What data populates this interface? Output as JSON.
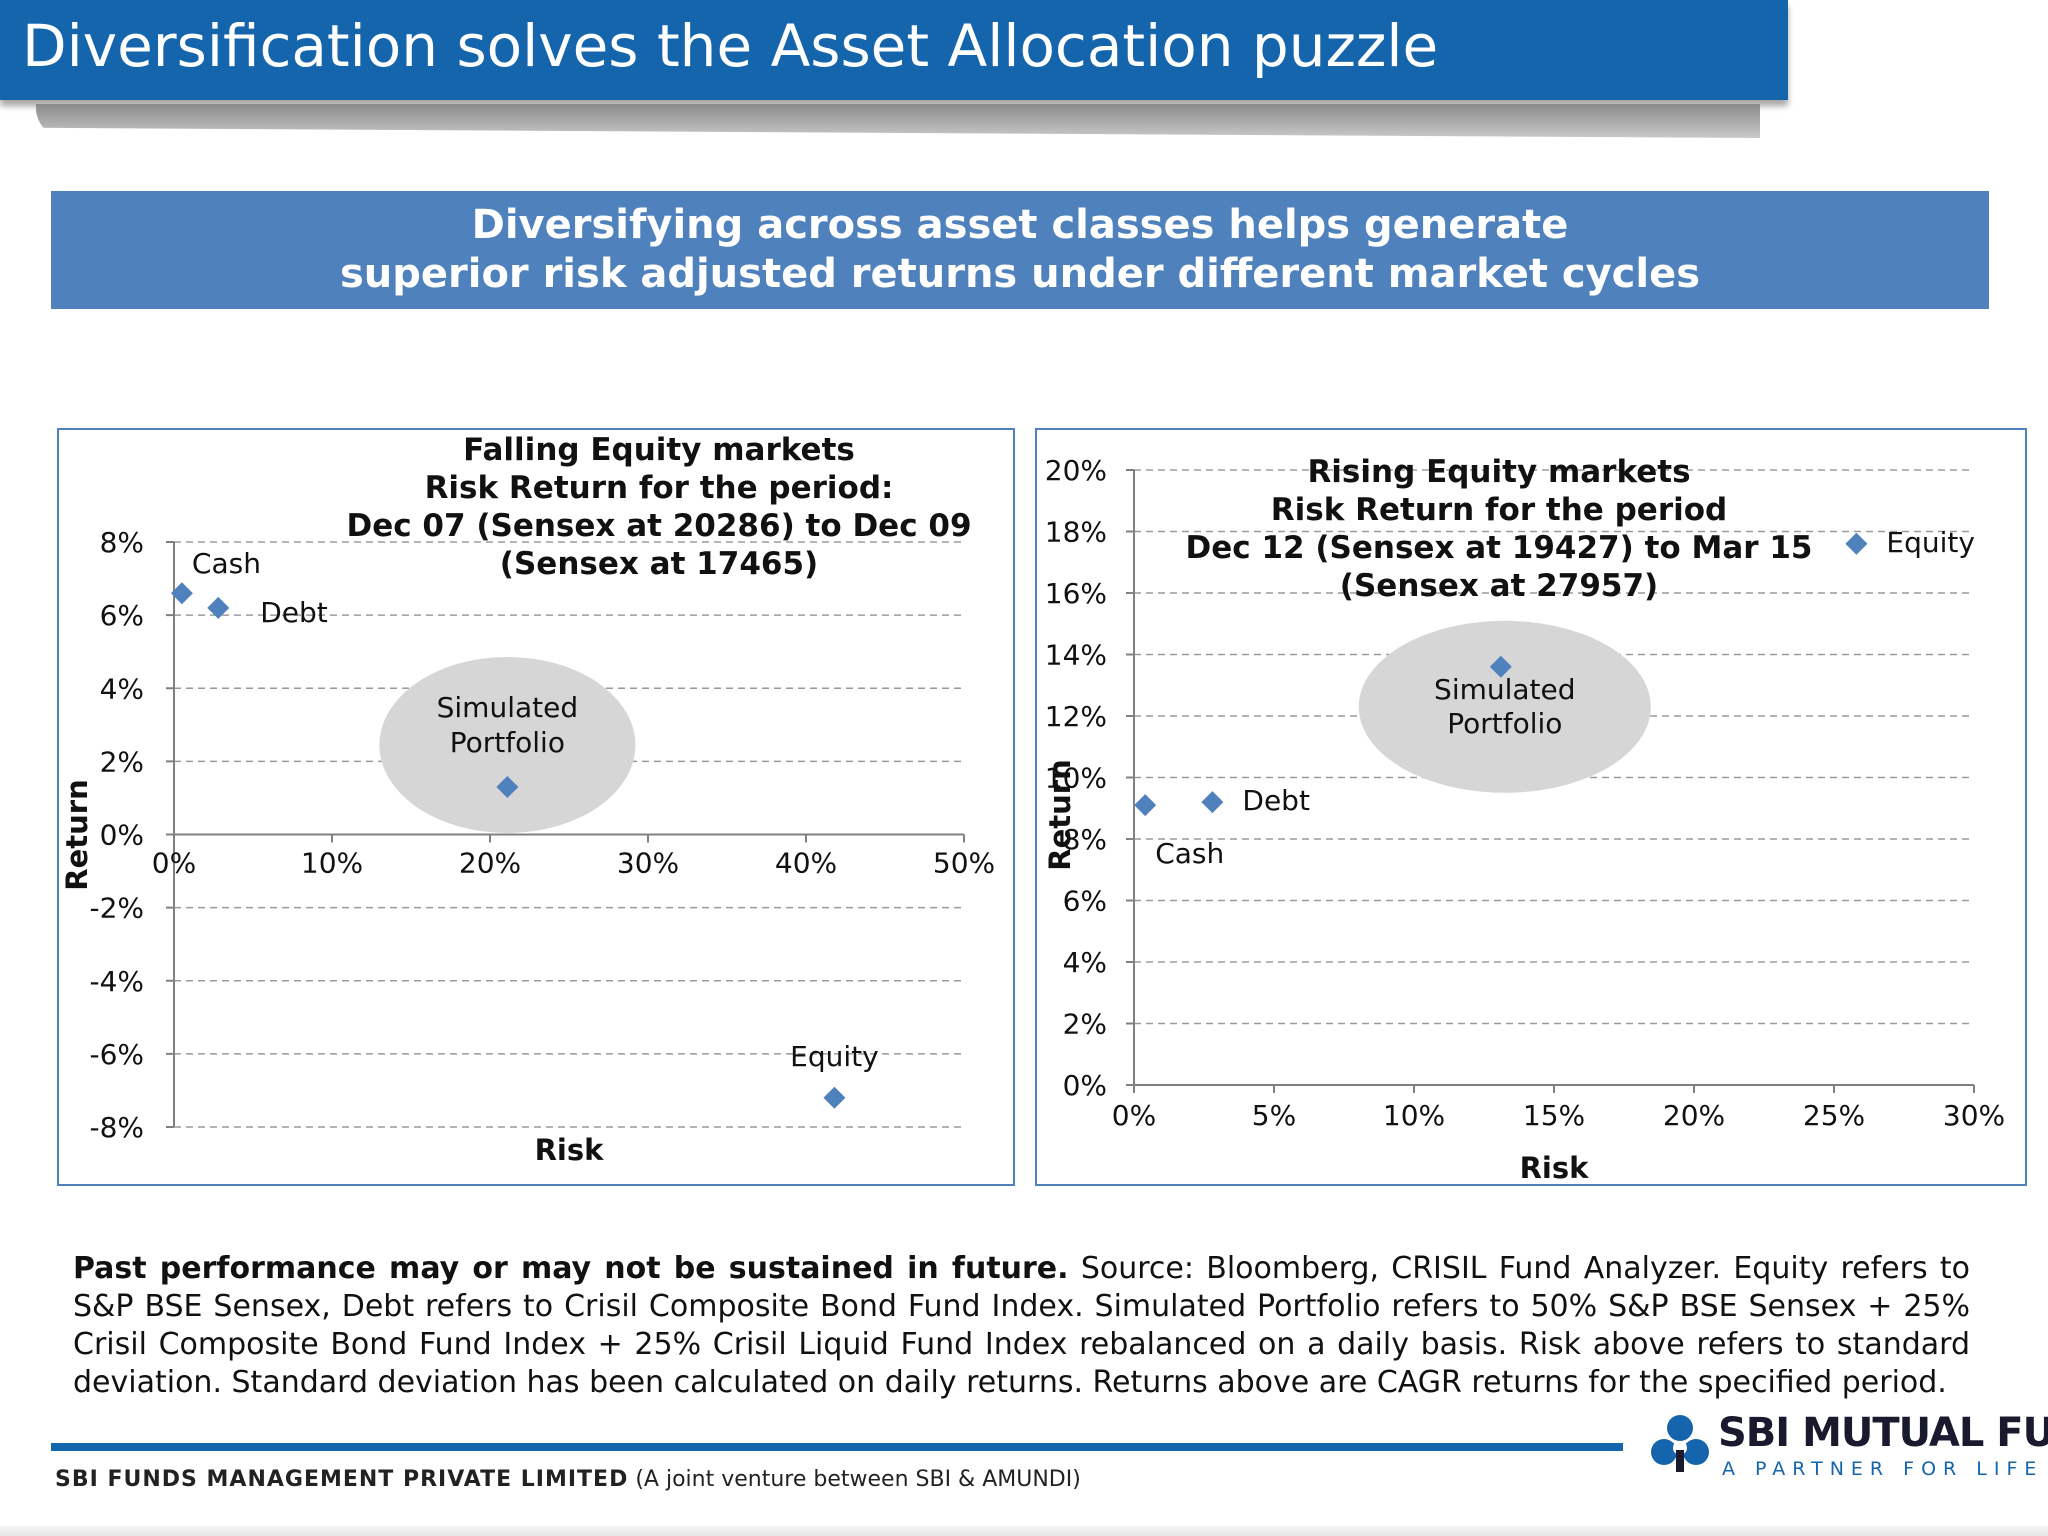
{
  "header": {
    "title": "Diversification solves the Asset Allocation puzzle"
  },
  "banner": {
    "line1": "Diversifying across asset classes helps generate",
    "line2": "superior risk adjusted returns under different market cycles"
  },
  "chart_data": [
    {
      "type": "scatter",
      "title_lines": [
        "Falling Equity markets",
        "Risk Return for the period:",
        "Dec 07 (Sensex at 20286) to Dec 09",
        "(Sensex at 17465)"
      ],
      "xlabel": "Risk",
      "ylabel": "Return",
      "xlim": [
        0,
        50
      ],
      "ylim": [
        -8,
        8
      ],
      "x_ticks": [
        0,
        10,
        20,
        30,
        40,
        50
      ],
      "y_ticks": [
        -8,
        -6,
        -4,
        -2,
        0,
        2,
        4,
        6,
        8
      ],
      "tick_format": "percent",
      "grid": true,
      "marker_color": "#4f81bd",
      "points": [
        {
          "label": "Cash",
          "x": 0.5,
          "y": 6.6
        },
        {
          "label": "Debt",
          "x": 2.8,
          "y": 6.2
        },
        {
          "label": "Simulated Portfolio",
          "x": 21.1,
          "y": 1.3
        },
        {
          "label": "Equity",
          "x": 41.8,
          "y": -7.2
        }
      ],
      "highlight": "Simulated Portfolio"
    },
    {
      "type": "scatter",
      "title_lines": [
        "Rising Equity markets",
        "Risk Return for the period",
        "Dec 12 (Sensex at 19427) to Mar 15",
        "(Sensex at 27957)"
      ],
      "xlabel": "Risk",
      "ylabel": "Return",
      "xlim": [
        0,
        30
      ],
      "ylim": [
        0,
        20
      ],
      "x_ticks": [
        0,
        5,
        10,
        15,
        20,
        25,
        30
      ],
      "y_ticks": [
        0,
        2,
        4,
        6,
        8,
        10,
        12,
        14,
        16,
        18,
        20
      ],
      "tick_format": "percent",
      "grid": true,
      "marker_color": "#4f81bd",
      "points": [
        {
          "label": "Cash",
          "x": 0.4,
          "y": 9.1
        },
        {
          "label": "Debt",
          "x": 2.8,
          "y": 9.2
        },
        {
          "label": "Simulated Portfolio",
          "x": 13.1,
          "y": 13.6
        },
        {
          "label": "Equity",
          "x": 25.8,
          "y": 17.6
        }
      ],
      "highlight": "Simulated Portfolio"
    }
  ],
  "footnote": {
    "bold": "Past performance may or may not be sustained in future.",
    "text": " Source: Bloomberg, CRISIL Fund Analyzer. Equity refers to S&P BSE Sensex, Debt refers to Crisil Composite Bond Fund Index. Simulated Portfolio refers to 50% S&P BSE Sensex + 25% Crisil Composite Bond Fund Index + 25% Crisil Liquid Fund Index rebalanced on a daily basis. Risk above refers to standard deviation. Standard deviation has been calculated on daily returns. Returns above are CAGR returns for the specified period."
  },
  "footer": {
    "company": "SBI FUNDS MANAGEMENT PRIVATE LIMITED",
    "company_note": " (A joint venture between SBI & AMUNDI)",
    "logo_name": "SBI MUTUAL FUND",
    "logo_tagline": "A PARTNER FOR LIFE",
    "logo_color": "#1565ad"
  }
}
